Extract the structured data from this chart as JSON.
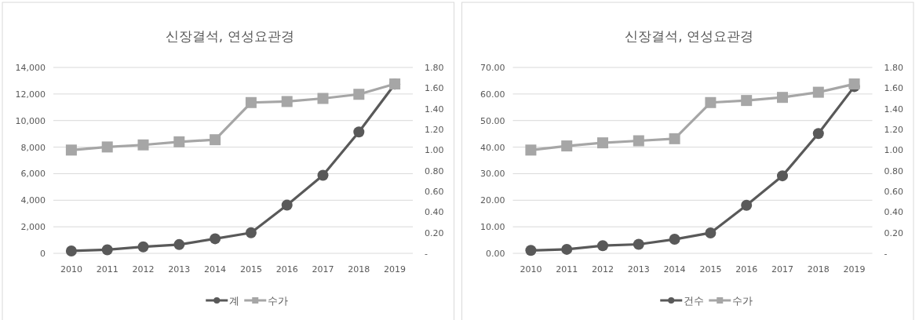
{
  "chart_data": [
    {
      "type": "line",
      "title": "신장결석, 연성요관경",
      "categories": [
        "2010",
        "2011",
        "2012",
        "2013",
        "2014",
        "2015",
        "2016",
        "2017",
        "2018",
        "2019"
      ],
      "series": [
        {
          "name": "계",
          "color": "#595959",
          "marker": "circle",
          "values": [
            180,
            270,
            490,
            660,
            1100,
            1550,
            3630,
            5880,
            9140,
            12740
          ]
        },
        {
          "name": "수가",
          "color": "#a6a6a6",
          "marker": "square",
          "axis": "y2",
          "values": [
            1.0,
            1.03,
            1.05,
            1.08,
            1.1,
            1.46,
            1.47,
            1.5,
            1.54,
            1.64
          ]
        }
      ],
      "ylim": [
        0,
        14000
      ],
      "yticks": [
        {
          "value": 0,
          "label": "0"
        },
        {
          "value": 2000,
          "label": "2,000"
        },
        {
          "value": 4000,
          "label": "4,000"
        },
        {
          "value": 6000,
          "label": "6,000"
        },
        {
          "value": 8000,
          "label": "8,000"
        },
        {
          "value": 10000,
          "label": "10,000"
        },
        {
          "value": 12000,
          "label": "12,000"
        },
        {
          "value": 14000,
          "label": "14,000"
        }
      ],
      "y2lim": [
        0,
        1.8
      ],
      "y2ticks": [
        {
          "value": 0,
          "label": "-"
        },
        {
          "value": 0.2,
          "label": "0.20"
        },
        {
          "value": 0.4,
          "label": "0.40"
        },
        {
          "value": 0.6,
          "label": "0.60"
        },
        {
          "value": 0.8,
          "label": "0.80"
        },
        {
          "value": 1.0,
          "label": "1.00"
        },
        {
          "value": 1.2,
          "label": "1.20"
        },
        {
          "value": 1.4,
          "label": "1.40"
        },
        {
          "value": 1.6,
          "label": "1.60"
        },
        {
          "value": 1.8,
          "label": "1.80"
        }
      ],
      "grid": "y",
      "legend": "bottom"
    },
    {
      "type": "line",
      "title": "신장결석, 연성요관경",
      "categories": [
        "2010",
        "2011",
        "2012",
        "2013",
        "2014",
        "2015",
        "2016",
        "2017",
        "2018",
        "2019"
      ],
      "series": [
        {
          "name": "건수",
          "color": "#595959",
          "marker": "circle",
          "values": [
            1.1,
            1.5,
            2.9,
            3.4,
            5.3,
            7.7,
            18.1,
            29.2,
            45.1,
            62.8
          ]
        },
        {
          "name": "수가",
          "color": "#a6a6a6",
          "marker": "square",
          "axis": "y2",
          "values": [
            1.0,
            1.04,
            1.07,
            1.09,
            1.11,
            1.46,
            1.48,
            1.51,
            1.56,
            1.64
          ]
        }
      ],
      "ylim": [
        0,
        70
      ],
      "yticks": [
        {
          "value": 0,
          "label": "0.00"
        },
        {
          "value": 10,
          "label": "10.00"
        },
        {
          "value": 20,
          "label": "20.00"
        },
        {
          "value": 30,
          "label": "30.00"
        },
        {
          "value": 40,
          "label": "40.00"
        },
        {
          "value": 50,
          "label": "50.00"
        },
        {
          "value": 60,
          "label": "60.00"
        },
        {
          "value": 70,
          "label": "70.00"
        }
      ],
      "y2lim": [
        0,
        1.8
      ],
      "y2ticks": [
        {
          "value": 0,
          "label": "-"
        },
        {
          "value": 0.2,
          "label": "0.20"
        },
        {
          "value": 0.4,
          "label": "0.40"
        },
        {
          "value": 0.6,
          "label": "0.60"
        },
        {
          "value": 0.8,
          "label": "0.80"
        },
        {
          "value": 1.0,
          "label": "1.00"
        },
        {
          "value": 1.2,
          "label": "1.20"
        },
        {
          "value": 1.4,
          "label": "1.40"
        },
        {
          "value": 1.6,
          "label": "1.60"
        },
        {
          "value": 1.8,
          "label": "1.80"
        }
      ],
      "grid": "y",
      "legend": "bottom"
    }
  ]
}
